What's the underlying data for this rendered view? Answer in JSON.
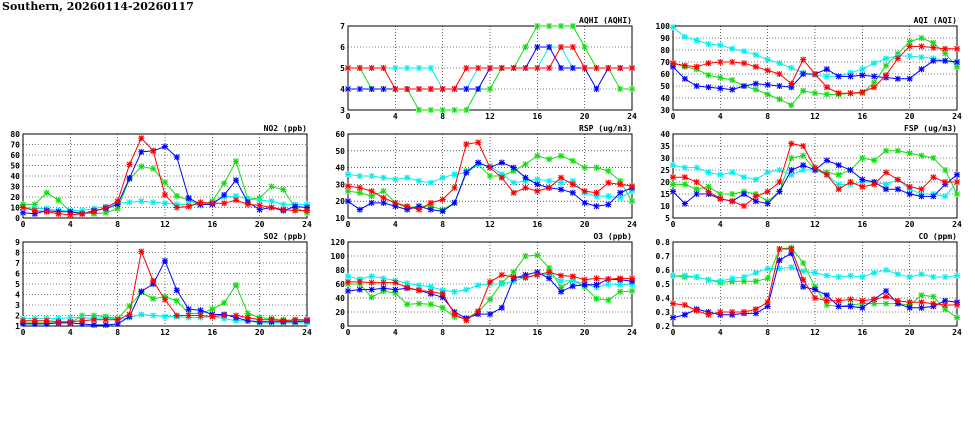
{
  "title": "Southern, 20260114-20260117",
  "colors": {
    "red": "#ff0000",
    "green": "#11dd11",
    "blue": "#0000ff",
    "cyan": "#00eeee"
  },
  "chart_data": [
    {
      "type": "line",
      "title": "AQHI (AQHI)",
      "xlim": [
        0,
        24
      ],
      "xticks": [
        "0",
        "4",
        "8",
        "12",
        "16",
        "20",
        "24"
      ],
      "ylim": [
        3,
        7
      ],
      "yticks": [
        "3",
        "4",
        "5",
        "6",
        "7"
      ],
      "grid": true,
      "series": [
        {
          "color": "green",
          "values": [
            5,
            5,
            4,
            4,
            4,
            4,
            3,
            3,
            3,
            3,
            3,
            4,
            4,
            5,
            5,
            6,
            7,
            7,
            7,
            7,
            6,
            5,
            5,
            4,
            4
          ]
        },
        {
          "color": "cyan",
          "values": [
            5,
            5,
            5,
            5,
            5,
            5,
            5,
            5,
            4,
            4,
            4,
            5,
            5,
            5,
            5,
            5,
            5,
            6,
            6,
            5,
            5,
            5,
            5,
            5,
            5
          ]
        },
        {
          "color": "blue",
          "values": [
            4,
            4,
            4,
            4,
            4,
            4,
            4,
            4,
            4,
            4,
            4,
            4,
            5,
            5,
            5,
            5,
            6,
            6,
            5,
            5,
            5,
            4,
            5,
            5,
            5
          ]
        },
        {
          "color": "red",
          "values": [
            5,
            5,
            5,
            5,
            4,
            4,
            4,
            4,
            4,
            4,
            5,
            5,
            5,
            5,
            5,
            5,
            5,
            5,
            6,
            6,
            5,
            5,
            5,
            5,
            5
          ]
        }
      ]
    },
    {
      "type": "line",
      "title": "AQI (AQI)",
      "xlim": [
        0,
        24
      ],
      "xticks": [
        "0",
        "4",
        "8",
        "12",
        "16",
        "20",
        "24"
      ],
      "ylim": [
        30,
        100
      ],
      "yticks": [
        "30",
        "40",
        "50",
        "60",
        "70",
        "80",
        "90",
        "100"
      ],
      "grid": true,
      "series": [
        {
          "color": "green",
          "values": [
            69,
            66,
            64,
            59,
            57,
            55,
            50,
            47,
            43,
            39,
            34,
            46,
            44,
            43,
            43,
            44,
            44,
            53,
            67,
            77,
            87,
            90,
            86,
            77,
            66
          ]
        },
        {
          "color": "cyan",
          "values": [
            99,
            91,
            88,
            85,
            84,
            81,
            79,
            76,
            72,
            69,
            65,
            61,
            59,
            58,
            58,
            61,
            64,
            69,
            73,
            75,
            75,
            74,
            73,
            71,
            70
          ]
        },
        {
          "color": "blue",
          "values": [
            66,
            56,
            50,
            49,
            48,
            47,
            50,
            52,
            51,
            50,
            49,
            60,
            60,
            64,
            58,
            58,
            59,
            58,
            57,
            56,
            56,
            64,
            71,
            71,
            70
          ]
        },
        {
          "color": "red",
          "values": [
            69,
            67,
            66,
            69,
            70,
            70,
            69,
            66,
            63,
            60,
            52,
            72,
            60,
            49,
            44,
            44,
            45,
            49,
            59,
            73,
            83,
            83,
            82,
            81,
            81
          ]
        }
      ]
    },
    {
      "type": "line",
      "title": "NO2 (ppb)",
      "xlim": [
        0,
        24
      ],
      "xticks": [
        "0",
        "4",
        "8",
        "12",
        "16",
        "20",
        "24"
      ],
      "ylim": [
        0,
        80
      ],
      "yticks": [
        "0",
        "10",
        "20",
        "30",
        "40",
        "50",
        "60",
        "70",
        "80"
      ],
      "grid": true,
      "series": [
        {
          "color": "green",
          "values": [
            13,
            13,
            24,
            17,
            6,
            5,
            4,
            5,
            9,
            37,
            49,
            47,
            34,
            21,
            17,
            12,
            16,
            33,
            54,
            18,
            19,
            30,
            27,
            10,
            5
          ]
        },
        {
          "color": "cyan",
          "values": [
            10,
            9,
            9,
            7,
            7,
            7,
            9,
            11,
            14,
            15,
            16,
            15,
            14,
            13,
            13,
            12,
            15,
            20,
            21,
            18,
            17,
            16,
            13,
            13,
            13
          ]
        },
        {
          "color": "blue",
          "values": [
            5,
            4,
            7,
            6,
            6,
            4,
            7,
            9,
            13,
            38,
            63,
            64,
            68,
            58,
            19,
            13,
            13,
            22,
            36,
            15,
            8,
            10,
            7,
            11,
            10
          ]
        },
        {
          "color": "red",
          "values": [
            10,
            7,
            6,
            4,
            3,
            4,
            6,
            10,
            16,
            51,
            76,
            64,
            22,
            10,
            11,
            15,
            14,
            14,
            17,
            13,
            12,
            10,
            8,
            7,
            7
          ]
        }
      ]
    },
    {
      "type": "line",
      "title": "RSP (ug/m3)",
      "xlim": [
        0,
        24
      ],
      "xticks": [
        "0",
        "4",
        "8",
        "12",
        "16",
        "20",
        "24"
      ],
      "ylim": [
        10,
        60
      ],
      "yticks": [
        "10",
        "20",
        "30",
        "40",
        "50",
        "60"
      ],
      "grid": true,
      "series": [
        {
          "color": "green",
          "values": [
            26,
            25,
            23,
            26,
            19,
            16,
            17,
            17,
            15,
            19,
            38,
            42,
            35,
            35,
            38,
            42,
            47,
            45,
            47,
            44,
            40,
            40,
            38,
            32,
            20
          ]
        },
        {
          "color": "cyan",
          "values": [
            36,
            35,
            35,
            34,
            33,
            34,
            32,
            31,
            34,
            36,
            37,
            42,
            41,
            36,
            31,
            32,
            33,
            32,
            31,
            32,
            25,
            23,
            23,
            22,
            26
          ]
        },
        {
          "color": "blue",
          "values": [
            20,
            15,
            19,
            19,
            17,
            15,
            17,
            15,
            14,
            19,
            37,
            43,
            40,
            43,
            40,
            34,
            30,
            28,
            27,
            25,
            19,
            17,
            18,
            25,
            28
          ]
        },
        {
          "color": "red",
          "values": [
            29,
            28,
            26,
            22,
            19,
            17,
            15,
            19,
            21,
            28,
            54,
            55,
            40,
            34,
            25,
            28,
            26,
            28,
            34,
            30,
            26,
            25,
            31,
            30,
            29
          ]
        }
      ]
    },
    {
      "type": "line",
      "title": "FSP (ug/m3)",
      "xlim": [
        0,
        24
      ],
      "xticks": [
        "0",
        "4",
        "8",
        "12",
        "16",
        "20",
        "24"
      ],
      "ylim": [
        5,
        40
      ],
      "yticks": [
        "5",
        "10",
        "15",
        "20",
        "25",
        "30",
        "35",
        "40"
      ],
      "grid": true,
      "series": [
        {
          "color": "green",
          "values": [
            19,
            19,
            17,
            18,
            15,
            15,
            16,
            15,
            12,
            16,
            30,
            31,
            25,
            24,
            23,
            25,
            30,
            29,
            33,
            33,
            32,
            31,
            30,
            25,
            15
          ]
        },
        {
          "color": "cyan",
          "values": [
            27,
            26,
            26,
            24,
            23,
            24,
            22,
            21,
            24,
            25,
            23,
            25,
            25,
            23,
            19,
            19,
            20,
            20,
            19,
            21,
            17,
            15,
            15,
            14,
            20
          ]
        },
        {
          "color": "blue",
          "values": [
            16,
            11,
            15,
            15,
            13,
            12,
            15,
            12,
            11,
            16,
            25,
            27,
            25,
            29,
            27,
            25,
            21,
            20,
            17,
            17,
            15,
            14,
            14,
            19,
            23
          ]
        },
        {
          "color": "red",
          "values": [
            22,
            22,
            20,
            16,
            13,
            12,
            10,
            14,
            16,
            20,
            36,
            35,
            26,
            23,
            17,
            20,
            18,
            19,
            24,
            21,
            18,
            17,
            22,
            20,
            20
          ]
        }
      ]
    },
    {
      "type": "line",
      "title": "SO2 (ppb)",
      "xlim": [
        0,
        24
      ],
      "xticks": [
        "0",
        "4",
        "8",
        "12",
        "16",
        "20",
        "24"
      ],
      "ylim": [
        1,
        9
      ],
      "yticks": [
        "1",
        "2",
        "3",
        "4",
        "5",
        "6",
        "7",
        "8",
        "9"
      ],
      "grid": true,
      "series": [
        {
          "color": "green",
          "values": [
            1.3,
            1.3,
            1.3,
            1.3,
            1.3,
            2.0,
            2.0,
            1.9,
            1.7,
            2.9,
            4.2,
            3.6,
            3.8,
            3.4,
            2.2,
            2.2,
            2.6,
            3.2,
            4.9,
            2.2,
            1.8,
            1.7,
            1.6,
            1.5,
            1.4
          ]
        },
        {
          "color": "cyan",
          "values": [
            1.7,
            1.7,
            1.7,
            1.7,
            1.8,
            1.8,
            1.7,
            1.8,
            1.6,
            1.8,
            2.1,
            2.0,
            1.9,
            1.9,
            1.8,
            1.8,
            1.9,
            1.7,
            1.5,
            1.5,
            1.3,
            1.3,
            1.3,
            1.3,
            1.3
          ]
        },
        {
          "color": "blue",
          "values": [
            1.2,
            1.2,
            1.2,
            1.3,
            1.3,
            1.2,
            1.1,
            1.1,
            1.2,
            1.9,
            4.3,
            5.0,
            7.2,
            4.4,
            2.6,
            2.5,
            2.1,
            2.1,
            1.8,
            1.5,
            1.4,
            1.4,
            1.4,
            1.4,
            1.5
          ]
        },
        {
          "color": "red",
          "values": [
            1.5,
            1.5,
            1.5,
            1.4,
            1.4,
            1.5,
            1.6,
            1.6,
            1.6,
            2.1,
            8.1,
            5.3,
            3.5,
            2.0,
            2.0,
            2.0,
            1.9,
            2.0,
            2.0,
            1.8,
            1.6,
            1.6,
            1.5,
            1.6,
            1.6
          ]
        }
      ]
    },
    {
      "type": "line",
      "title": "O3 (ppb)",
      "xlim": [
        0,
        24
      ],
      "xticks": [
        "0",
        "4",
        "8",
        "12",
        "16",
        "20",
        "24"
      ],
      "ylim": [
        0,
        120
      ],
      "yticks": [
        "0",
        "20",
        "40",
        "60",
        "80",
        "100",
        "120"
      ],
      "grid": true,
      "series": [
        {
          "color": "green",
          "values": [
            60,
            60,
            41,
            50,
            47,
            31,
            32,
            31,
            26,
            13,
            11,
            20,
            38,
            62,
            77,
            100,
            101,
            83,
            55,
            66,
            56,
            39,
            37,
            49,
            50
          ]
        },
        {
          "color": "cyan",
          "values": [
            71,
            67,
            71,
            68,
            65,
            61,
            58,
            56,
            51,
            49,
            52,
            58,
            60,
            60,
            64,
            70,
            73,
            74,
            64,
            65,
            60,
            55,
            60,
            59,
            59
          ]
        },
        {
          "color": "blue",
          "values": [
            50,
            52,
            52,
            54,
            52,
            54,
            51,
            46,
            41,
            20,
            11,
            17,
            17,
            26,
            68,
            73,
            77,
            68,
            49,
            57,
            59,
            59,
            67,
            66,
            64
          ]
        },
        {
          "color": "red",
          "values": [
            63,
            63,
            62,
            62,
            62,
            55,
            51,
            49,
            46,
            17,
            8,
            21,
            63,
            73,
            70,
            69,
            73,
            77,
            72,
            71,
            66,
            68,
            67,
            68,
            68
          ]
        }
      ]
    },
    {
      "type": "line",
      "title": "CO (ppm)",
      "xlim": [
        0,
        24
      ],
      "xticks": [
        "0",
        "4",
        "8",
        "12",
        "16",
        "20",
        "24"
      ],
      "ylim": [
        0.2,
        0.8
      ],
      "yticks": [
        "0.2",
        "0.3",
        "0.4",
        "0.5",
        "0.6",
        "0.7",
        "0.8"
      ],
      "grid": true,
      "series": [
        {
          "color": "green",
          "values": [
            0.56,
            0.55,
            0.55,
            0.53,
            0.51,
            0.52,
            0.52,
            0.52,
            0.54,
            0.75,
            0.76,
            0.65,
            0.48,
            0.35,
            0.34,
            0.35,
            0.36,
            0.36,
            0.36,
            0.36,
            0.35,
            0.42,
            0.41,
            0.32,
            0.26
          ]
        },
        {
          "color": "cyan",
          "values": [
            0.56,
            0.56,
            0.55,
            0.53,
            0.52,
            0.54,
            0.55,
            0.58,
            0.61,
            0.61,
            0.62,
            0.59,
            0.58,
            0.56,
            0.55,
            0.56,
            0.55,
            0.58,
            0.6,
            0.57,
            0.55,
            0.57,
            0.55,
            0.55,
            0.56
          ]
        },
        {
          "color": "blue",
          "values": [
            0.26,
            0.28,
            0.32,
            0.3,
            0.28,
            0.28,
            0.29,
            0.29,
            0.34,
            0.67,
            0.72,
            0.48,
            0.46,
            0.42,
            0.34,
            0.34,
            0.33,
            0.39,
            0.45,
            0.36,
            0.33,
            0.33,
            0.34,
            0.38,
            0.37
          ]
        },
        {
          "color": "red",
          "values": [
            0.36,
            0.35,
            0.31,
            0.28,
            0.3,
            0.3,
            0.3,
            0.32,
            0.37,
            0.75,
            0.75,
            0.53,
            0.4,
            0.38,
            0.38,
            0.39,
            0.38,
            0.39,
            0.41,
            0.38,
            0.37,
            0.37,
            0.36,
            0.35,
            0.35
          ]
        }
      ]
    }
  ]
}
